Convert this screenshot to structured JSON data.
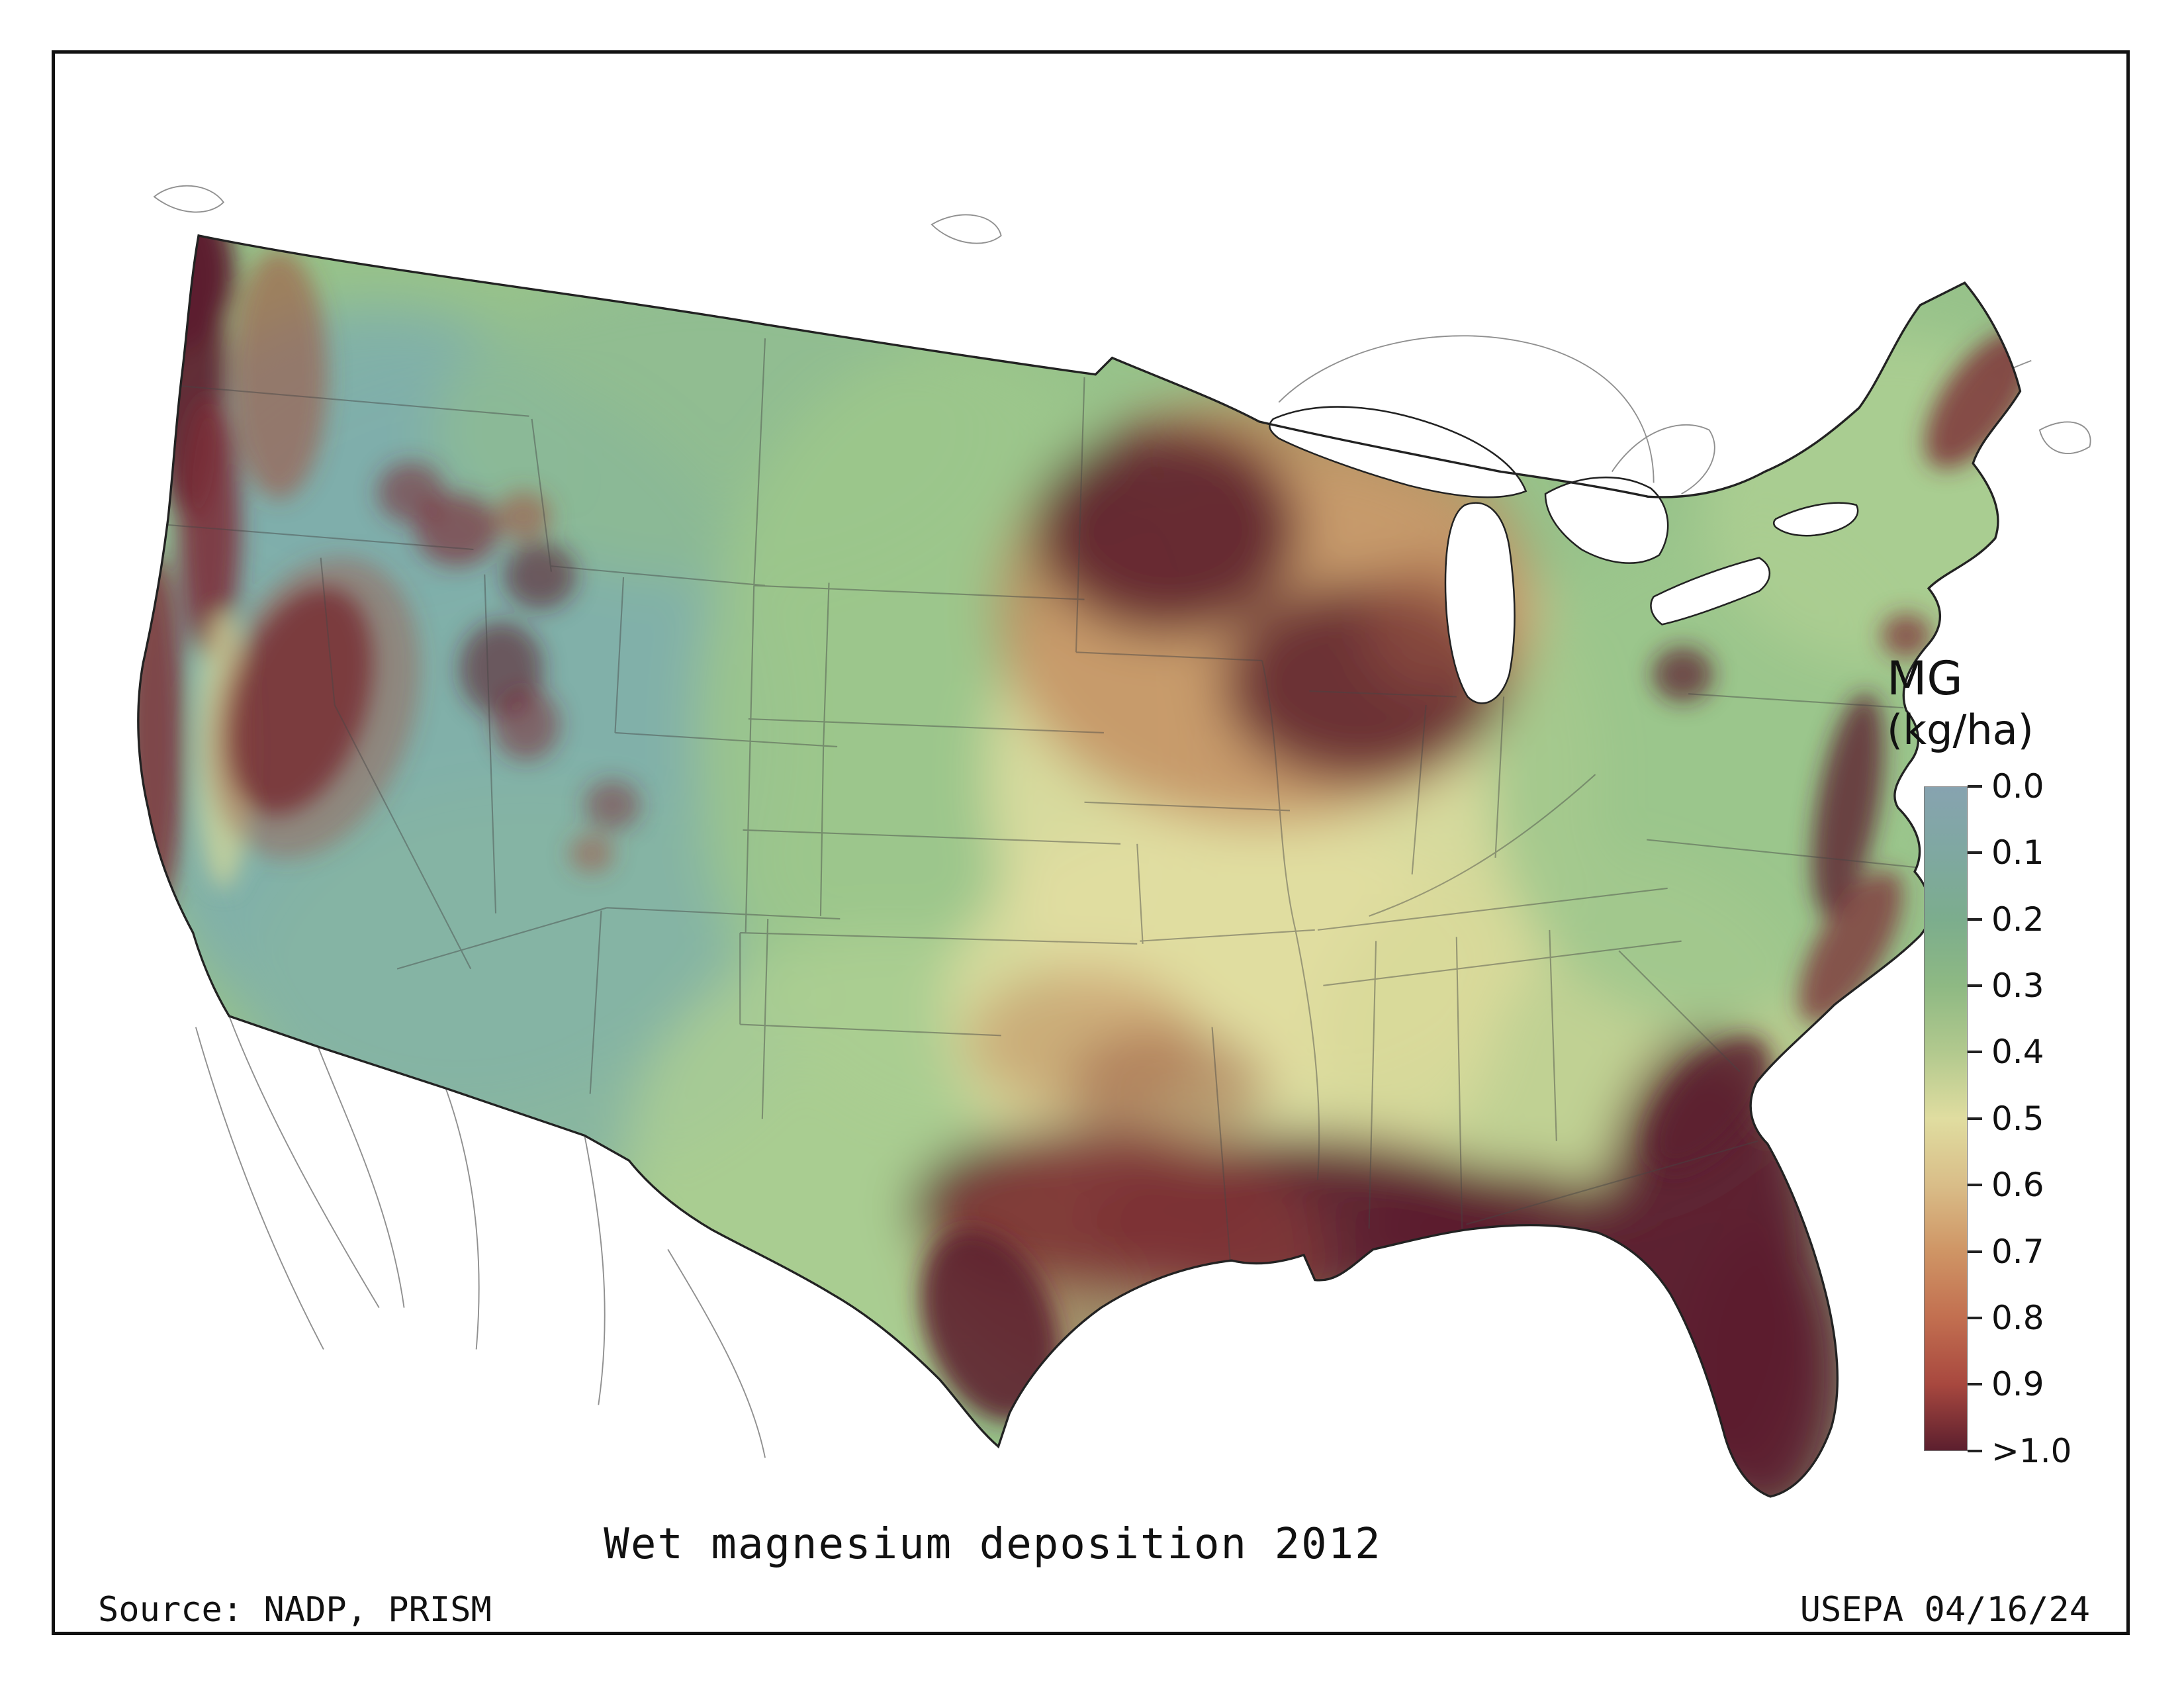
{
  "page": {
    "title": "Wet magnesium deposition 2012",
    "source": "Source: NADP, PRISM",
    "agency_date": "USEPA 04/16/24"
  },
  "legend": {
    "title": "MG",
    "unit": "(kg/ha)",
    "ticks": [
      "0.0",
      "0.1",
      "0.2",
      "0.3",
      "0.4",
      "0.5",
      "0.6",
      "0.7",
      "0.8",
      "0.9",
      ">1.0"
    ],
    "colors": [
      "#87a3b0",
      "#7fa8a1",
      "#7cad8d",
      "#8eb983",
      "#b2c98e",
      "#e0dda0",
      "#d9bd88",
      "#cf9565",
      "#c26f50",
      "#a8483f",
      "#5c1f2e"
    ]
  },
  "map": {
    "colors": {
      "base": "#97c28a",
      "lowTeal": "#7fafab",
      "softTeal": "#86b4a3",
      "plainsGreen": "#9cc78c",
      "lightGreen": "#aecf92",
      "paleYellow": "#e2dea1",
      "valleyYellow": "#d6d898",
      "tan": "#d2b37e",
      "orange": "#c08055",
      "brown": "#9a5a42",
      "rust": "#a34a3d",
      "darkRed": "#7c2b35",
      "maroon": "#5c1f2e",
      "outline": "#222222",
      "stateLine": "#444444",
      "neighborLine": "#555555",
      "lakeFill": "#ffffff"
    }
  },
  "chart_data": {
    "type": "heatmap",
    "title": "Wet magnesium deposition 2012",
    "variable": "MG",
    "unit": "kg/ha",
    "geography": "Contiguous United States",
    "source": "NADP, PRISM",
    "agency": "USEPA",
    "date": "04/16/24",
    "colorbar": {
      "orientation": "vertical",
      "position": "right",
      "ticks": [
        "0.0",
        "0.1",
        "0.2",
        "0.3",
        "0.4",
        "0.5",
        "0.6",
        "0.7",
        "0.8",
        "0.9",
        ">1.0"
      ],
      "colors": [
        "#87a3b0",
        "#7fa8a1",
        "#7cad8d",
        "#8eb983",
        "#b2c98e",
        "#e0dda0",
        "#d9bd88",
        "#cf9565",
        "#c26f50",
        "#a8483f",
        "#5c1f2e"
      ]
    },
    "regions_summary": [
      {
        "region": "Pacific Northwest coast (WA/OR)",
        "value_kg_ha": ">1.0"
      },
      {
        "region": "Northern California coast & Sierra Nevada",
        "value_kg_ha": "0.9->1.0"
      },
      {
        "region": "Great Basin / interior Southwest (NV, UT, AZ)",
        "value_kg_ha": "0.0-0.2"
      },
      {
        "region": "Northern Rockies scattered peaks (ID, MT, WY, CO)",
        "value_kg_ha": "0.7->1.0"
      },
      {
        "region": "Great Plains (ND-KS)",
        "value_kg_ha": "0.2-0.4"
      },
      {
        "region": "Iowa / southern Minnesota / Wisconsin",
        "value_kg_ha": "0.8->1.0"
      },
      {
        "region": "Illinois / Indiana near Lake Michigan",
        "value_kg_ha": "0.8->1.0"
      },
      {
        "region": "Central Midwest (MO, KY, OH valley)",
        "value_kg_ha": "0.5-0.7"
      },
      {
        "region": "Gulf Coast (Texas to Florida panhandle)",
        "value_kg_ha": ">1.0"
      },
      {
        "region": "Florida peninsula",
        "value_kg_ha": ">1.0"
      },
      {
        "region": "Atlantic coastline (Chesapeake, Carolinas, Georgia)",
        "value_kg_ha": "0.8->1.0"
      },
      {
        "region": "Interior East / Appalachians / Northeast",
        "value_kg_ha": "0.3-0.6"
      },
      {
        "region": "Coastal Maine",
        "value_kg_ha": "0.8->1.0"
      }
    ]
  }
}
